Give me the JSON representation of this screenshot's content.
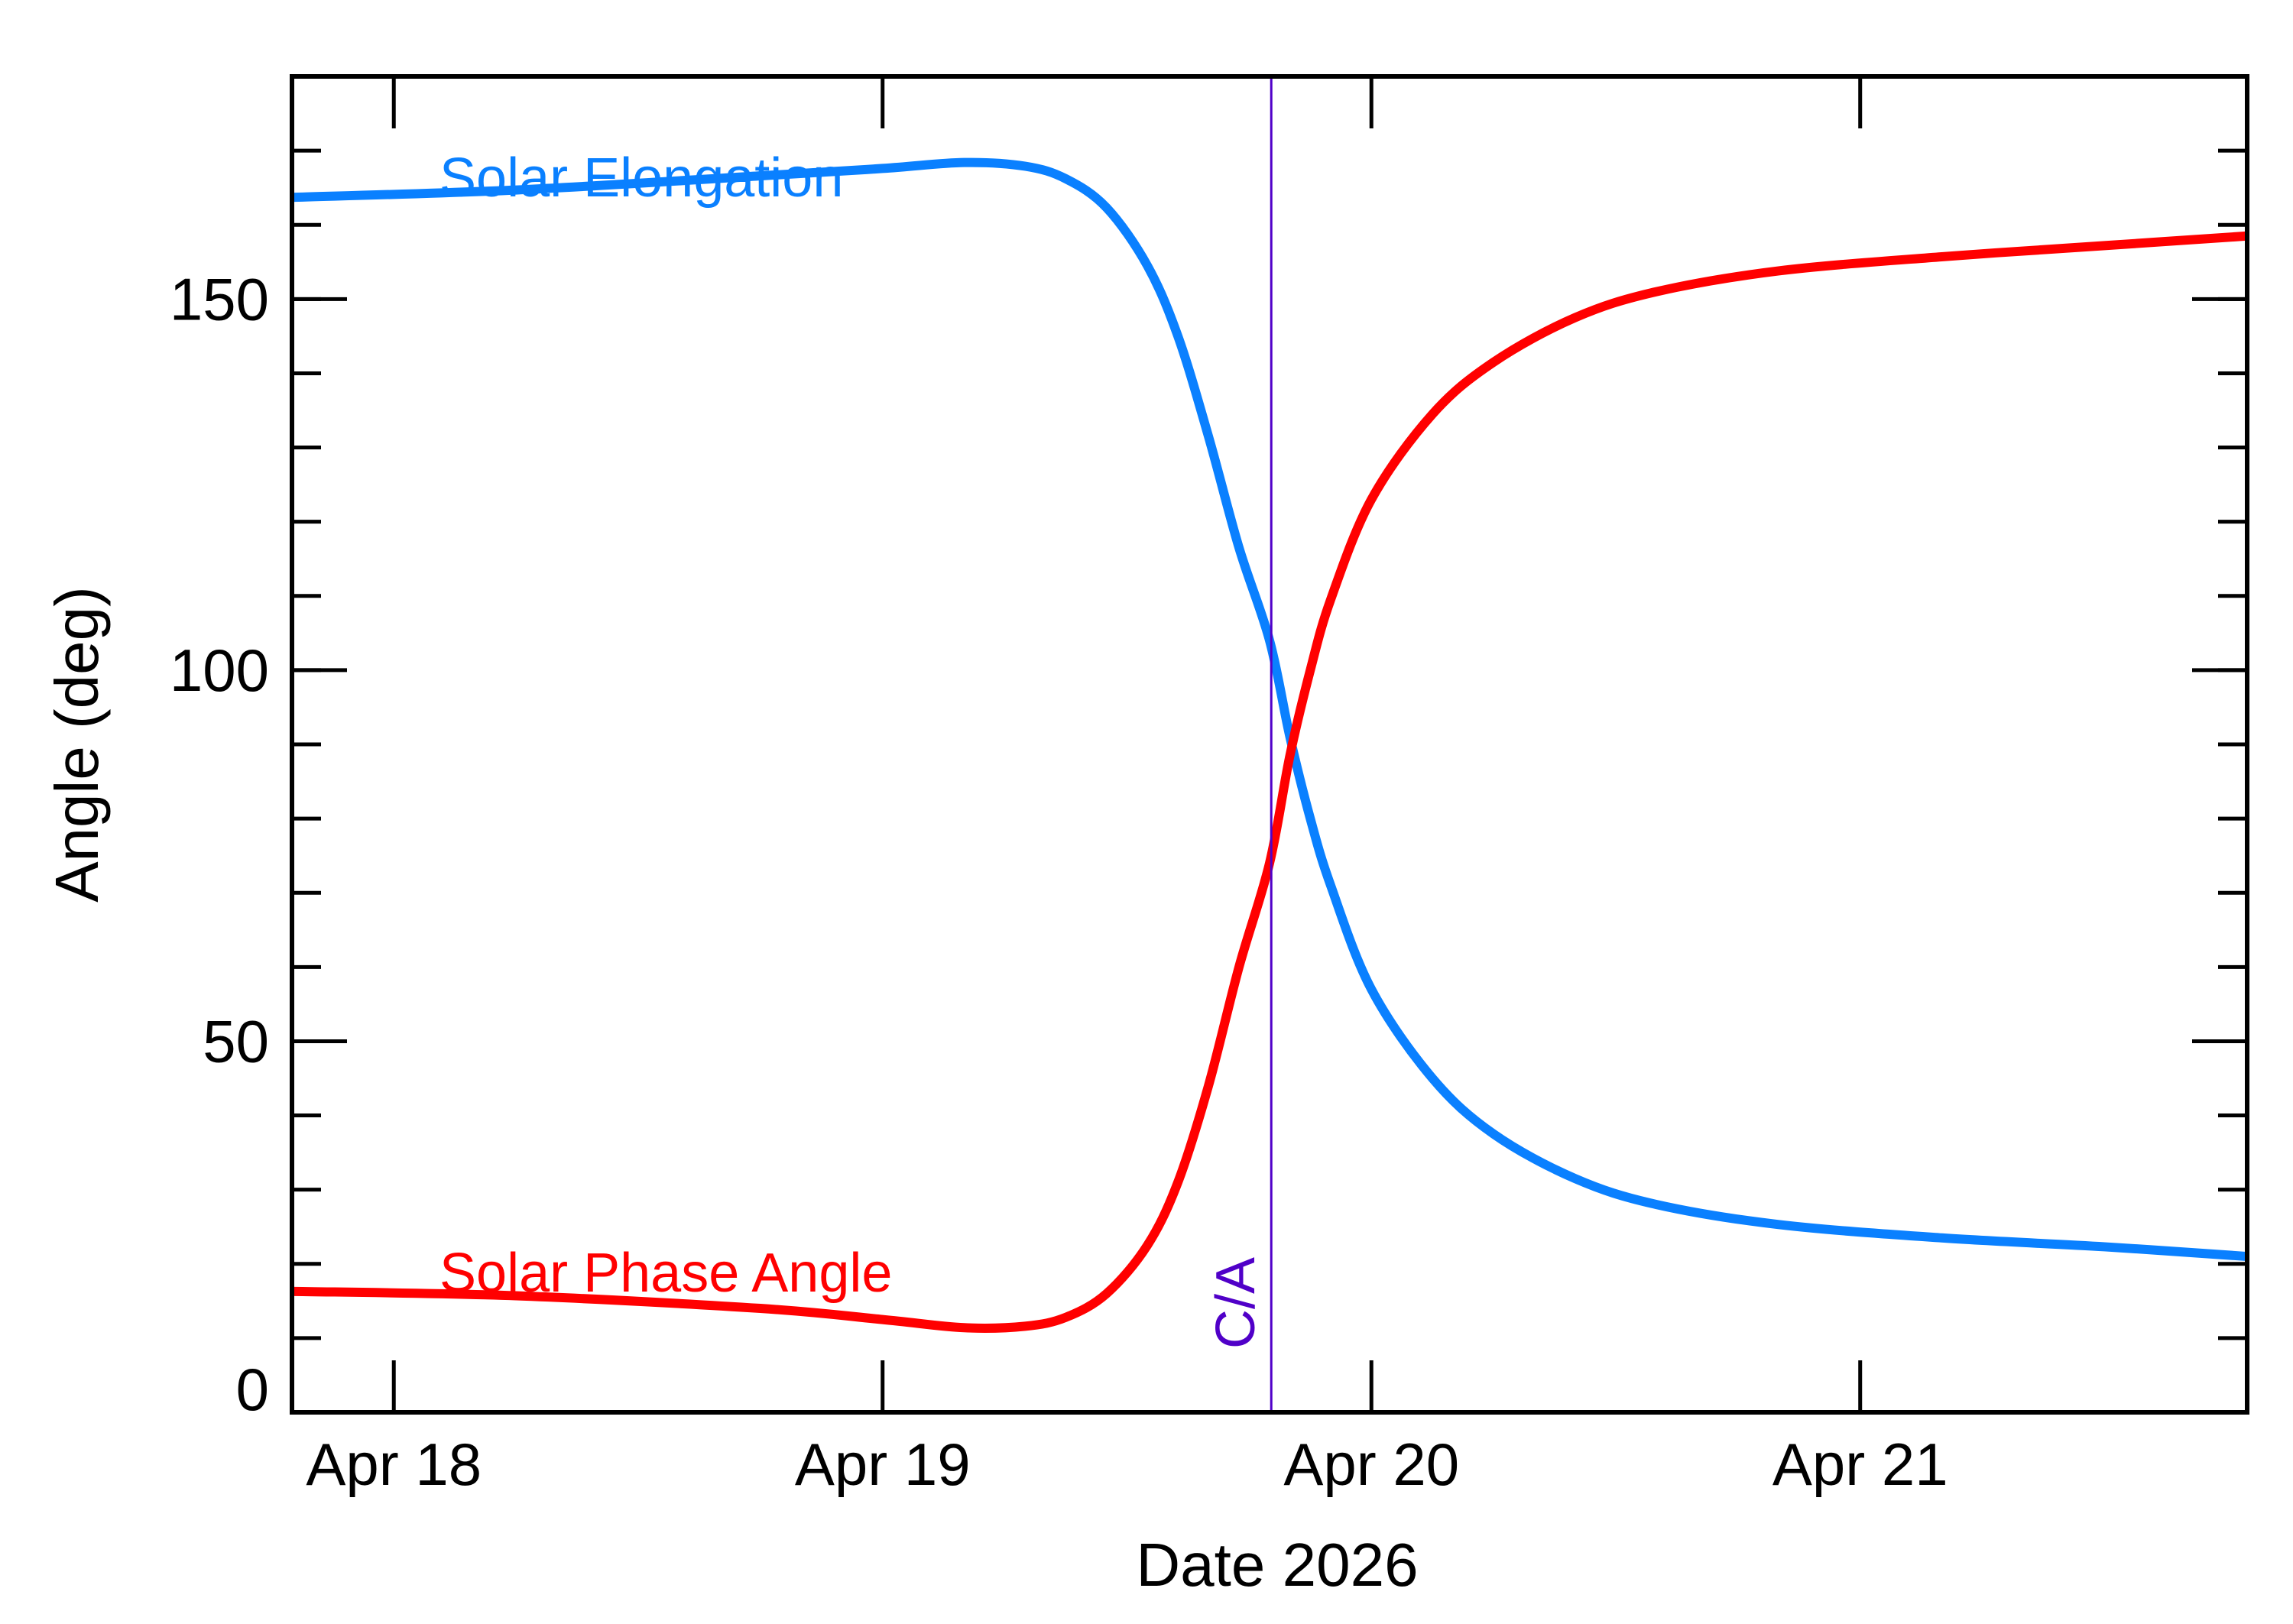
{
  "chart_data": {
    "type": "line",
    "xlabel": "Date 2026",
    "ylabel": "Angle (deg)",
    "ylim": [
      0,
      180
    ],
    "xlim": [
      "2026-04-17 19:00",
      "2026-04-21 19:00"
    ],
    "x_ticks": [
      {
        "date": "2026-04-18",
        "label": "Apr 18"
      },
      {
        "date": "2026-04-19",
        "label": "Apr 19"
      },
      {
        "date": "2026-04-20",
        "label": "Apr 20"
      },
      {
        "date": "2026-04-21",
        "label": "Apr 21"
      }
    ],
    "y_ticks": [
      {
        "value": 0,
        "label": "0"
      },
      {
        "value": 50,
        "label": "50"
      },
      {
        "value": 100,
        "label": "100"
      },
      {
        "value": 150,
        "label": "150"
      }
    ],
    "y_minor_step": 10,
    "grid": false,
    "closest_approach": {
      "x": "2026-04-19 19:05",
      "label": "C/A",
      "color": "#5000c8"
    },
    "series": [
      {
        "name": "Solar Elongation",
        "color": "#0a80ff",
        "points": [
          [
            "2026-04-17 19:00",
            163.7
          ],
          [
            "2026-04-18 06:00",
            164.7
          ],
          [
            "2026-04-18 18:00",
            166.6
          ],
          [
            "2026-04-19 00:00",
            167.6
          ],
          [
            "2026-04-19 04:00",
            168.4
          ],
          [
            "2026-04-19 07:00",
            167.9
          ],
          [
            "2026-04-19 09:00",
            166.2
          ],
          [
            "2026-04-19 11:00",
            162.3
          ],
          [
            "2026-04-19 13:00",
            154.5
          ],
          [
            "2026-04-19 14:30",
            145.0
          ],
          [
            "2026-04-19 16:00",
            131.5
          ],
          [
            "2026-04-19 17:30",
            116.5
          ],
          [
            "2026-04-19 19:00",
            104.0
          ],
          [
            "2026-04-19 20:00",
            91.0
          ],
          [
            "2026-04-19 21:00",
            80.0
          ],
          [
            "2026-04-19 22:00",
            71.0
          ],
          [
            "2026-04-20 00:00",
            57.0
          ],
          [
            "2026-04-20 03:00",
            45.0
          ],
          [
            "2026-04-20 06:00",
            37.5
          ],
          [
            "2026-04-20 10:00",
            31.5
          ],
          [
            "2026-04-20 14:00",
            28.0
          ],
          [
            "2026-04-20 20:00",
            25.3
          ],
          [
            "2026-04-21 04:00",
            23.5
          ],
          [
            "2026-04-21 12:00",
            22.3
          ],
          [
            "2026-04-21 19:00",
            21.0
          ]
        ]
      },
      {
        "name": "Solar Phase Angle",
        "color": "#ff0000",
        "points": [
          [
            "2026-04-17 19:00",
            16.3
          ],
          [
            "2026-04-18 06:00",
            15.7
          ],
          [
            "2026-04-18 18:00",
            14.0
          ],
          [
            "2026-04-19 00:00",
            12.5
          ],
          [
            "2026-04-19 04:00",
            11.4
          ],
          [
            "2026-04-19 07:00",
            11.6
          ],
          [
            "2026-04-19 09:00",
            12.8
          ],
          [
            "2026-04-19 11:00",
            16.0
          ],
          [
            "2026-04-19 13:00",
            22.5
          ],
          [
            "2026-04-19 14:30",
            31.0
          ],
          [
            "2026-04-19 16:00",
            44.0
          ],
          [
            "2026-04-19 17:30",
            60.0
          ],
          [
            "2026-04-19 19:00",
            74.0
          ],
          [
            "2026-04-19 20:00",
            88.5
          ],
          [
            "2026-04-19 21:00",
            100.0
          ],
          [
            "2026-04-19 22:00",
            109.5
          ],
          [
            "2026-04-20 00:00",
            123.0
          ],
          [
            "2026-04-20 03:00",
            134.5
          ],
          [
            "2026-04-20 06:00",
            141.5
          ],
          [
            "2026-04-20 10:00",
            147.5
          ],
          [
            "2026-04-20 14:00",
            151.0
          ],
          [
            "2026-04-20 20:00",
            153.8
          ],
          [
            "2026-04-21 04:00",
            155.7
          ],
          [
            "2026-04-21 12:00",
            157.2
          ],
          [
            "2026-04-21 19:00",
            158.5
          ]
        ]
      }
    ]
  }
}
